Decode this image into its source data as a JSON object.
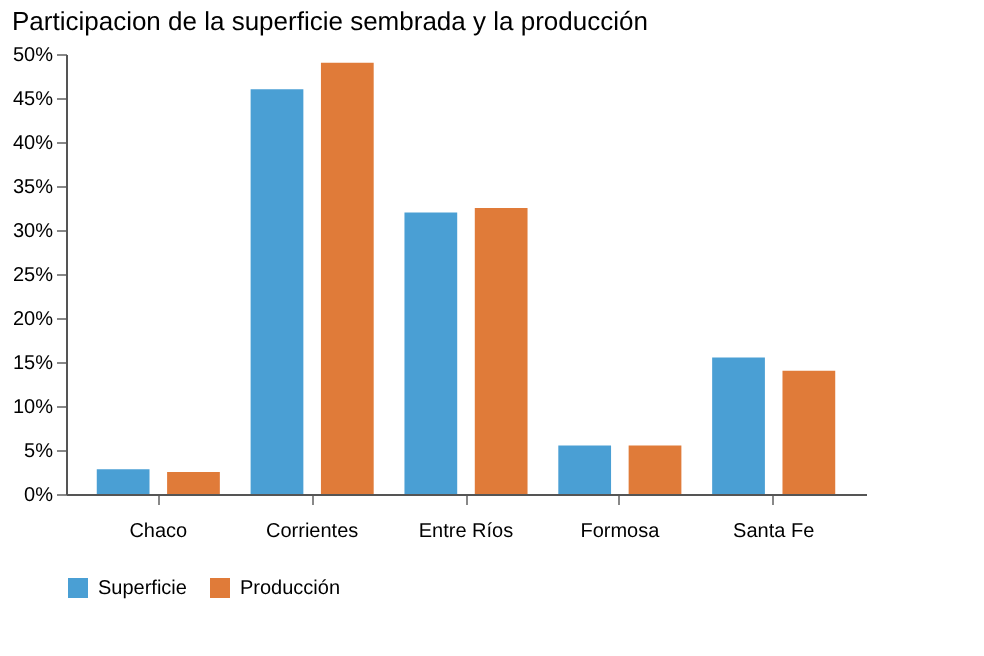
{
  "chart_data": {
    "type": "bar",
    "title": "Participacion de la superficie sembrada y la producción",
    "categories": [
      "Chaco",
      "Corrientes",
      "Entre Ríos",
      "Formosa",
      "Santa Fe"
    ],
    "series": [
      {
        "name": "Superficie",
        "color": "#4a9fd4",
        "values": [
          2.8,
          46,
          32,
          5.5,
          15.5
        ]
      },
      {
        "name": "Producción",
        "color": "#e07b39",
        "values": [
          2.5,
          49,
          32.5,
          5.5,
          14
        ]
      }
    ],
    "ylim": [
      0,
      50
    ],
    "yticks": [
      {
        "value": 0,
        "label": "0%"
      },
      {
        "value": 5,
        "label": "5%"
      },
      {
        "value": 10,
        "label": "10%"
      },
      {
        "value": 15,
        "label": "15%"
      },
      {
        "value": 20,
        "label": "20%"
      },
      {
        "value": 25,
        "label": "25%"
      },
      {
        "value": 30,
        "label": "30%"
      },
      {
        "value": 35,
        "label": "35%"
      },
      {
        "value": 40,
        "label": "40%"
      },
      {
        "value": 45,
        "label": "45%"
      },
      {
        "value": 50,
        "label": "50%"
      }
    ],
    "grid": false,
    "legend": "bottom"
  }
}
